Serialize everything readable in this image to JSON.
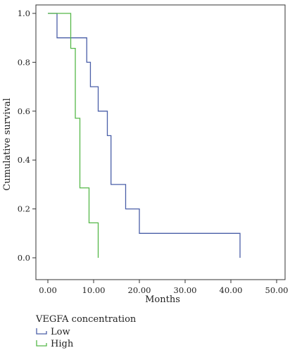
{
  "chart_data": {
    "type": "line",
    "subtype": "kaplan-meier-step",
    "title": "",
    "xlabel": "Months",
    "ylabel": "Cumulative survival",
    "xlim": [
      0,
      52
    ],
    "ylim": [
      0,
      1.05
    ],
    "x_ticks": [
      0,
      10,
      20,
      30,
      40,
      50
    ],
    "x_tick_labels": [
      "0.00",
      "10.00",
      "20.00",
      "30.00",
      "40.00",
      "50.00"
    ],
    "y_ticks": [
      0,
      0.2,
      0.4,
      0.6,
      0.8,
      1.0
    ],
    "y_tick_labels": [
      "0.0",
      "0.2",
      "0.4",
      "0.6",
      "0.8",
      "1.0"
    ],
    "grid": false,
    "legend": {
      "title": "VEGFA concentration",
      "placement": "bottom-left"
    },
    "series": [
      {
        "name": "Low",
        "color": "#4a5fa8",
        "x": [
          0,
          2,
          8.5,
          9.3,
          11,
          13,
          13.8,
          17,
          20,
          42
        ],
        "y": [
          1.0,
          0.9,
          0.8,
          0.7,
          0.6,
          0.5,
          0.3,
          0.2,
          0.1,
          0.0
        ]
      },
      {
        "name": "High",
        "color": "#55b848",
        "x": [
          0,
          5,
          6,
          7,
          9,
          11
        ],
        "y": [
          1.0,
          0.857,
          0.571,
          0.286,
          0.143,
          0.0
        ]
      }
    ]
  }
}
